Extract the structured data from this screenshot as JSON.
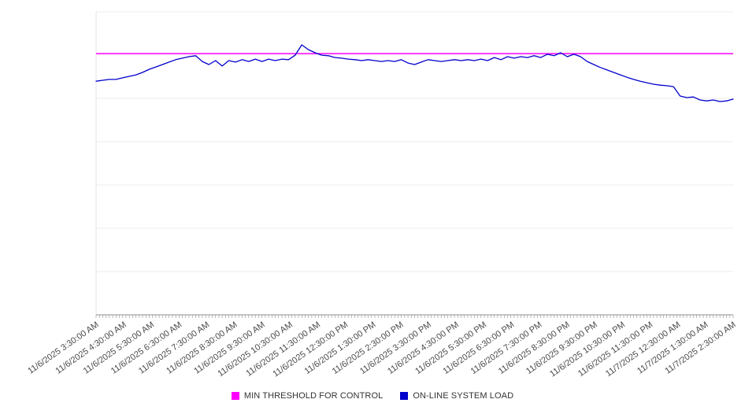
{
  "page": {
    "background": "#ffffff"
  },
  "chart_data": {
    "type": "line",
    "title": "",
    "grid": "horizontal",
    "grid_rows": 7,
    "legend_position": "bottom",
    "y_axis_labels_visible": false,
    "ylim": [
      0,
      100
    ],
    "x_tick_labels": [
      "11/6/2025 3:30:00 AM",
      "11/6/2025 4:30:00 AM",
      "11/6/2025 5:30:00 AM",
      "11/6/2025 6:30:00 AM",
      "11/6/2025 7:30:00 AM",
      "11/6/2025 8:30:00 AM",
      "11/6/2025 9:30:00 AM",
      "11/6/2025 10:30:00 AM",
      "11/6/2025 11:30:00 AM",
      "11/6/2025 12:30:00 PM",
      "11/6/2025 1:30:00 PM",
      "11/6/2025 2:30:00 PM",
      "11/6/2025 3:30:00 PM",
      "11/6/2025 4:30:00 PM",
      "11/6/2025 5:30:00 PM",
      "11/6/2025 6:30:00 PM",
      "11/6/2025 7:30:00 PM",
      "11/6/2025 8:30:00 PM",
      "11/6/2025 9:30:00 PM",
      "11/6/2025 10:30:00 PM",
      "11/6/2025 11:30:00 PM",
      "11/7/2025 12:30:00 AM",
      "11/7/2025 1:30:00 AM",
      "11/7/2025 2:30:00 AM"
    ],
    "series": [
      {
        "name": "MIN THRESHOLD FOR CONTROL",
        "type": "threshold",
        "color": "#ff00ff",
        "value": 86.2
      },
      {
        "name": "ON-LINE SYSTEM LOAD",
        "type": "line",
        "color": "#0000cd",
        "values": [
          77.1,
          77.4,
          77.7,
          77.7,
          78.2,
          78.7,
          79.2,
          80.0,
          81.0,
          81.8,
          82.6,
          83.4,
          84.2,
          84.7,
          85.2,
          85.5,
          83.6,
          82.6,
          83.9,
          82.1,
          83.9,
          83.4,
          84.2,
          83.6,
          84.4,
          83.6,
          84.4,
          83.9,
          84.4,
          84.2,
          85.7,
          89.1,
          87.5,
          86.5,
          85.7,
          85.5,
          84.9,
          84.7,
          84.4,
          84.2,
          83.9,
          84.2,
          83.9,
          83.6,
          83.9,
          83.6,
          84.2,
          83.1,
          82.6,
          83.4,
          84.2,
          83.9,
          83.6,
          83.9,
          84.2,
          83.9,
          84.2,
          83.9,
          84.4,
          83.9,
          84.9,
          84.2,
          85.2,
          84.7,
          85.2,
          84.9,
          85.5,
          84.9,
          86.0,
          85.5,
          86.5,
          85.2,
          86.0,
          85.2,
          83.6,
          82.6,
          81.6,
          80.8,
          80.0,
          79.2,
          78.4,
          77.7,
          77.1,
          76.6,
          76.1,
          75.8,
          75.6,
          75.3,
          72.2,
          71.7,
          71.9,
          70.9,
          70.6,
          70.9,
          70.4,
          70.6,
          71.2
        ]
      }
    ]
  }
}
